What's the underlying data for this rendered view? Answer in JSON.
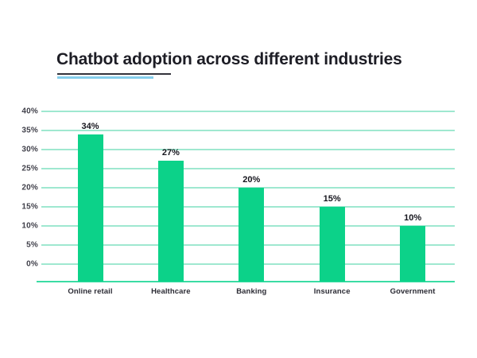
{
  "title": {
    "text": "Chatbot adoption across different industries",
    "underline_dark_color": "#33333b",
    "underline_accent_color": "#85ceec"
  },
  "chart_data": {
    "type": "bar",
    "title": "Chatbot adoption across different industries",
    "categories": [
      "Online retail",
      "Healthcare",
      "Banking",
      "Insurance",
      "Government"
    ],
    "values": [
      34,
      27,
      20,
      15,
      10
    ],
    "value_labels": [
      "34%",
      "27%",
      "20%",
      "15%",
      "10%"
    ],
    "ytick_labels": [
      "0%",
      "5%",
      "10%",
      "15%",
      "20%",
      "25%",
      "30%",
      "35%",
      "40%"
    ],
    "ylim": [
      0,
      40
    ],
    "ytick_step": 5,
    "xlabel": "",
    "ylabel": "",
    "grid": "horizontal",
    "legend": "none",
    "colors": {
      "bar": "#0cd289",
      "gridline": "#9fe8d0",
      "baseline": "#3adca4",
      "title_text": "#1d1d25",
      "tick_text": "#3f3f49",
      "category_text": "#2b2b34",
      "value_text": "#15151d",
      "background": "#ffffff"
    }
  }
}
